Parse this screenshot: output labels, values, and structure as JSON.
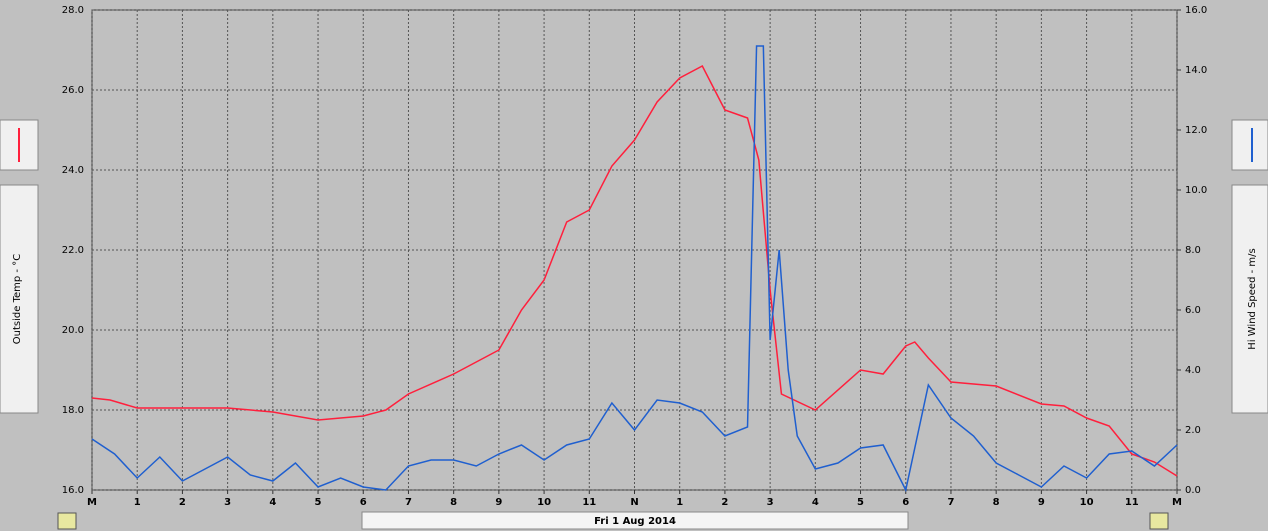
{
  "chart_data": {
    "type": "line",
    "x_title": "Fri 1 Aug 2014",
    "xlim": [
      0,
      24
    ],
    "xticks": [
      {
        "value": 0,
        "label": "M"
      },
      1,
      2,
      3,
      4,
      5,
      6,
      7,
      8,
      9,
      10,
      11,
      {
        "value": 12,
        "label": "N"
      },
      {
        "value": 13,
        "label": "1"
      },
      {
        "value": 14,
        "label": "2"
      },
      {
        "value": 15,
        "label": "3"
      },
      {
        "value": 16,
        "label": "4"
      },
      {
        "value": 17,
        "label": "5"
      },
      {
        "value": 18,
        "label": "6"
      },
      {
        "value": 19,
        "label": "7"
      },
      {
        "value": 20,
        "label": "8"
      },
      {
        "value": 21,
        "label": "9"
      },
      {
        "value": 22,
        "label": "10"
      },
      {
        "value": 23,
        "label": "11"
      },
      {
        "value": 24,
        "label": "M"
      }
    ],
    "ylim": [
      16,
      28
    ],
    "yticks": [
      {
        "value": 16,
        "label": "16.0"
      },
      {
        "value": 18,
        "label": "18.0"
      },
      {
        "value": 20,
        "label": "20.0"
      },
      {
        "value": 22,
        "label": "22.0"
      },
      {
        "value": 24,
        "label": "24.0"
      },
      {
        "value": 26,
        "label": "26.0"
      },
      {
        "value": 28,
        "label": "28.0"
      }
    ],
    "y2lim": [
      0,
      16
    ],
    "y2ticks": [
      {
        "value": 0,
        "label": "0.0"
      },
      {
        "value": 2,
        "label": "2.0"
      },
      {
        "value": 4,
        "label": "4.0"
      },
      {
        "value": 6,
        "label": "6.0"
      },
      {
        "value": 8,
        "label": "8.0"
      },
      {
        "value": 10,
        "label": "10.0"
      },
      {
        "value": 12,
        "label": "12.0"
      },
      {
        "value": 14,
        "label": "14.0"
      },
      {
        "value": 16,
        "label": "16.0"
      }
    ],
    "grid": true,
    "series": [
      {
        "name": "Outside Temp - °C",
        "color": "#ff1f3c",
        "x": [
          0,
          0.4,
          1,
          2,
          3,
          4,
          5,
          6,
          6.5,
          7,
          8,
          9,
          9.5,
          10,
          10.5,
          11,
          11.5,
          12,
          12.5,
          13,
          13.5,
          14,
          14.5,
          14.75,
          15,
          15.25,
          16,
          17,
          17.5,
          18,
          18.2,
          18.5,
          19,
          20,
          21,
          21.5,
          22,
          22.5,
          23,
          23.5,
          24
        ],
        "values": [
          18.3,
          18.25,
          18.05,
          18.05,
          18.05,
          17.95,
          17.75,
          17.85,
          18.0,
          18.4,
          18.9,
          19.5,
          20.5,
          21.25,
          22.7,
          23.0,
          24.1,
          24.75,
          25.7,
          26.3,
          26.6,
          25.5,
          25.3,
          24.25,
          21.0,
          18.4,
          18.0,
          19.0,
          18.9,
          19.6,
          19.7,
          19.3,
          18.7,
          18.6,
          18.15,
          18.1,
          17.8,
          17.6,
          16.9,
          16.7,
          16.35
        ]
      },
      {
        "name": "Hi Wind Speed - m/s",
        "color": "#1f5fcf",
        "axis": "y2",
        "x": [
          0,
          0.5,
          1,
          1.5,
          2,
          2.5,
          3,
          3.5,
          4,
          4.5,
          5,
          5.5,
          6,
          6.5,
          7,
          7.5,
          8,
          8.5,
          9,
          9.5,
          10,
          10.5,
          11,
          11.5,
          12,
          12.5,
          13,
          13.5,
          14,
          14.5,
          14.7,
          14.85,
          15,
          15.2,
          15.4,
          15.6,
          16,
          16.5,
          17,
          17.5,
          18,
          18.5,
          19,
          19.5,
          20,
          20.5,
          21,
          21.5,
          22,
          22.5,
          23,
          23.5,
          24
        ],
        "values": [
          1.7,
          1.2,
          0.4,
          1.1,
          0.3,
          0.7,
          1.1,
          0.5,
          0.3,
          0.9,
          0.1,
          0.4,
          0.1,
          0.0,
          0.8,
          1.0,
          1.0,
          0.8,
          1.2,
          1.5,
          1.0,
          1.5,
          1.7,
          2.9,
          2.0,
          3.0,
          2.9,
          2.6,
          1.8,
          2.1,
          14.8,
          14.8,
          5.0,
          8.0,
          4.0,
          1.8,
          0.7,
          0.9,
          1.4,
          1.5,
          0.0,
          3.5,
          2.4,
          1.8,
          0.9,
          0.5,
          0.1,
          0.8,
          0.4,
          1.2,
          1.3,
          0.8,
          1.5
        ]
      }
    ]
  }
}
